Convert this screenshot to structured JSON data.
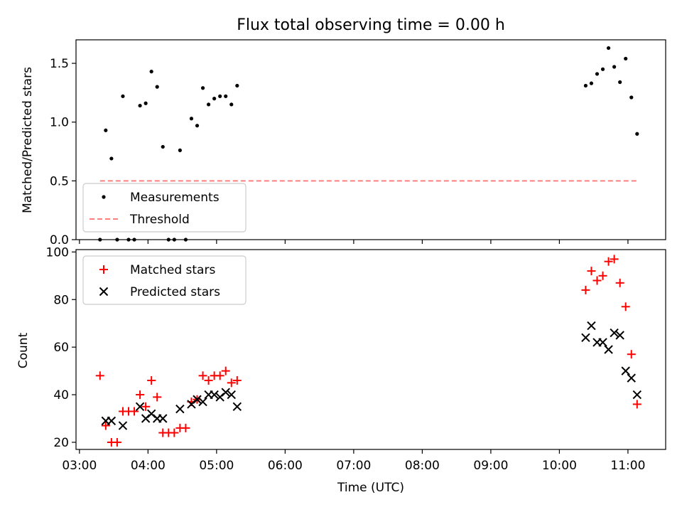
{
  "chart_data": [
    {
      "type": "scatter",
      "title": "Flux total observing time = 0.00 h",
      "ylabel": "Matched/Predicted stars",
      "xlabel": "",
      "ylim": [
        0,
        1.7
      ],
      "yticks": [
        "0.0",
        "0.5",
        "1.0",
        "1.5"
      ],
      "ytick_values": [
        0,
        0.5,
        1.0,
        1.5
      ],
      "x_is_time_hours": true,
      "xlim_hours": [
        2.95,
        11.55
      ],
      "legend": {
        "placement": "lower-left",
        "entries": [
          "Measurements",
          "Threshold"
        ]
      },
      "series": [
        {
          "name": "Measurements",
          "marker": "dot",
          "color": "#000000",
          "points": [
            [
              "03:18",
              0.0
            ],
            [
              "03:23",
              0.93
            ],
            [
              "03:28",
              0.69
            ],
            [
              "03:33",
              0.0
            ],
            [
              "03:38",
              1.22
            ],
            [
              "03:43",
              0.0
            ],
            [
              "03:48",
              0.0
            ],
            [
              "03:53",
              1.14
            ],
            [
              "03:58",
              1.16
            ],
            [
              "04:03",
              1.43
            ],
            [
              "04:08",
              1.3
            ],
            [
              "04:13",
              0.79
            ],
            [
              "04:18",
              0.0
            ],
            [
              "04:23",
              0.0
            ],
            [
              "04:28",
              0.76
            ],
            [
              "04:33",
              0.0
            ],
            [
              "04:38",
              1.03
            ],
            [
              "04:43",
              0.97
            ],
            [
              "04:48",
              1.29
            ],
            [
              "04:53",
              1.15
            ],
            [
              "04:58",
              1.2
            ],
            [
              "05:03",
              1.22
            ],
            [
              "05:08",
              1.22
            ],
            [
              "05:13",
              1.15
            ],
            [
              "05:18",
              1.31
            ],
            [
              "10:23",
              1.31
            ],
            [
              "10:28",
              1.33
            ],
            [
              "10:33",
              1.41
            ],
            [
              "10:38",
              1.45
            ],
            [
              "10:43",
              1.63
            ],
            [
              "10:48",
              1.47
            ],
            [
              "10:53",
              1.34
            ],
            [
              "10:58",
              1.54
            ],
            [
              "11:03",
              1.21
            ],
            [
              "11:08",
              0.9
            ]
          ]
        },
        {
          "name": "Threshold",
          "marker": "dashed-line",
          "color": "#ff7f7f",
          "points": [
            [
              "03:18",
              0.5
            ],
            [
              "11:08",
              0.5
            ]
          ]
        }
      ]
    },
    {
      "type": "scatter",
      "title": "",
      "ylabel": "Count",
      "xlabel": "Time (UTC)",
      "ylim": [
        17,
        101
      ],
      "yticks": [
        "20",
        "40",
        "60",
        "80",
        "100"
      ],
      "ytick_values": [
        20,
        40,
        60,
        80,
        100
      ],
      "xlim_hours": [
        2.95,
        11.55
      ],
      "xticks": [
        "03:00",
        "04:00",
        "05:00",
        "06:00",
        "07:00",
        "08:00",
        "09:00",
        "10:00",
        "11:00"
      ],
      "xtick_values_hours": [
        3,
        4,
        5,
        6,
        7,
        8,
        9,
        10,
        11
      ],
      "legend": {
        "placement": "upper-left",
        "entries": [
          "Matched stars",
          "Predicted stars"
        ]
      },
      "series": [
        {
          "name": "Matched stars",
          "marker": "plus",
          "color": "#ff0000",
          "points": [
            [
              "03:18",
              48
            ],
            [
              "03:23",
              27
            ],
            [
              "03:28",
              20
            ],
            [
              "03:33",
              20
            ],
            [
              "03:38",
              33
            ],
            [
              "03:43",
              33
            ],
            [
              "03:48",
              33
            ],
            [
              "03:53",
              40
            ],
            [
              "03:58",
              35
            ],
            [
              "04:03",
              46
            ],
            [
              "04:08",
              39
            ],
            [
              "04:13",
              24
            ],
            [
              "04:18",
              24
            ],
            [
              "04:23",
              24
            ],
            [
              "04:28",
              26
            ],
            [
              "04:33",
              26
            ],
            [
              "04:38",
              37
            ],
            [
              "04:43",
              38
            ],
            [
              "04:48",
              48
            ],
            [
              "04:53",
              46
            ],
            [
              "04:58",
              48
            ],
            [
              "05:03",
              48
            ],
            [
              "05:08",
              50
            ],
            [
              "05:13",
              45
            ],
            [
              "05:18",
              46
            ],
            [
              "10:23",
              84
            ],
            [
              "10:28",
              92
            ],
            [
              "10:33",
              88
            ],
            [
              "10:38",
              90
            ],
            [
              "10:43",
              96
            ],
            [
              "10:48",
              97
            ],
            [
              "10:53",
              87
            ],
            [
              "10:58",
              77
            ],
            [
              "11:03",
              57
            ],
            [
              "11:08",
              36
            ]
          ]
        },
        {
          "name": "Predicted stars",
          "marker": "x",
          "color": "#000000",
          "points": [
            [
              "03:23",
              29
            ],
            [
              "03:28",
              29
            ],
            [
              "03:38",
              27
            ],
            [
              "03:53",
              35
            ],
            [
              "03:58",
              30
            ],
            [
              "04:03",
              32
            ],
            [
              "04:08",
              30
            ],
            [
              "04:13",
              30
            ],
            [
              "04:28",
              34
            ],
            [
              "04:38",
              36
            ],
            [
              "04:43",
              38
            ],
            [
              "04:48",
              37
            ],
            [
              "04:53",
              40
            ],
            [
              "04:58",
              40
            ],
            [
              "05:03",
              39
            ],
            [
              "05:08",
              41
            ],
            [
              "05:13",
              40
            ],
            [
              "05:18",
              35
            ],
            [
              "10:23",
              64
            ],
            [
              "10:28",
              69
            ],
            [
              "10:33",
              62
            ],
            [
              "10:38",
              62
            ],
            [
              "10:43",
              59
            ],
            [
              "10:48",
              66
            ],
            [
              "10:53",
              65
            ],
            [
              "10:58",
              50
            ],
            [
              "11:03",
              47
            ],
            [
              "11:08",
              40
            ]
          ]
        }
      ]
    }
  ]
}
